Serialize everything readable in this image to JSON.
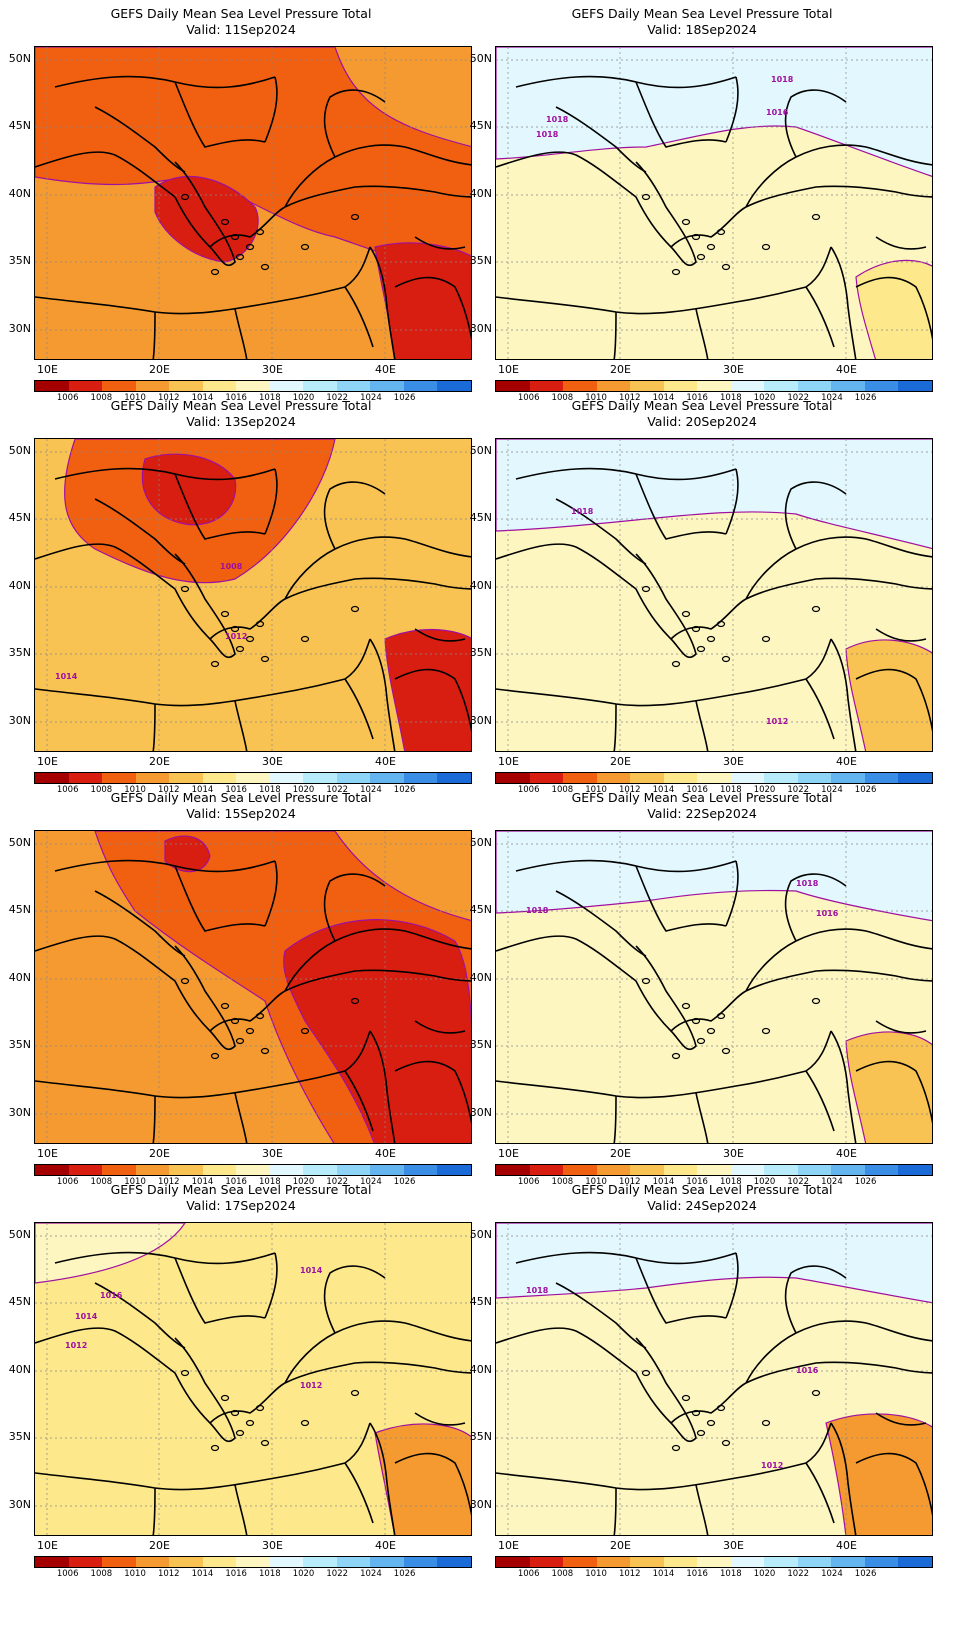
{
  "title": "GEFS Daily Mean Sea Level Pressure Total",
  "valid_prefix": "Valid:",
  "lat_labels": [
    "50N",
    "45N",
    "40N",
    "35N",
    "30N"
  ],
  "lon_labels": [
    "10E",
    "20E",
    "30E",
    "40E"
  ],
  "colorbar": {
    "ticks": [
      "1006",
      "1008",
      "1010",
      "1012",
      "1014",
      "1016",
      "1018",
      "1020",
      "1022",
      "1024",
      "1026"
    ],
    "colors": [
      "#a50000",
      "#d81e10",
      "#f06010",
      "#f49a30",
      "#f9c354",
      "#fde88c",
      "#fdf6c0",
      "#e2f8fe",
      "#b8ecfa",
      "#8ed4f6",
      "#64b4f0",
      "#3a8ee6",
      "#1a6ad8"
    ]
  },
  "panels": [
    {
      "valid": "Valid: 11Sep2024",
      "fill_levels": [
        1010,
        1008,
        1006
      ],
      "contour_labels": []
    },
    {
      "valid": "Valid: 18Sep2024",
      "fill_levels": [
        1016,
        1018,
        1014
      ],
      "contour_labels": [
        "1018",
        "1018",
        "1018",
        "1016"
      ]
    },
    {
      "valid": "Valid: 13Sep2024",
      "fill_levels": [
        1012,
        1008,
        1006
      ],
      "contour_labels": [
        "1008",
        "1012",
        "1014"
      ]
    },
    {
      "valid": "Valid: 20Sep2024",
      "fill_levels": [
        1016,
        1018,
        1012
      ],
      "contour_labels": [
        "1018",
        "1012"
      ]
    },
    {
      "valid": "Valid: 15Sep2024",
      "fill_levels": [
        1010,
        1008,
        1006
      ],
      "contour_labels": []
    },
    {
      "valid": "Valid: 22Sep2024",
      "fill_levels": [
        1016,
        1018,
        1012
      ],
      "contour_labels": [
        "1018",
        "1018",
        "1016"
      ]
    },
    {
      "valid": "Valid: 17Sep2024",
      "fill_levels": [
        1014,
        1016,
        1010
      ],
      "contour_labels": [
        "1014",
        "1016",
        "1014",
        "1012",
        "1012"
      ]
    },
    {
      "valid": "Valid: 24Sep2024",
      "fill_levels": [
        1016,
        1018,
        1010
      ],
      "contour_labels": [
        "1018",
        "1016",
        "1012"
      ]
    }
  ]
}
